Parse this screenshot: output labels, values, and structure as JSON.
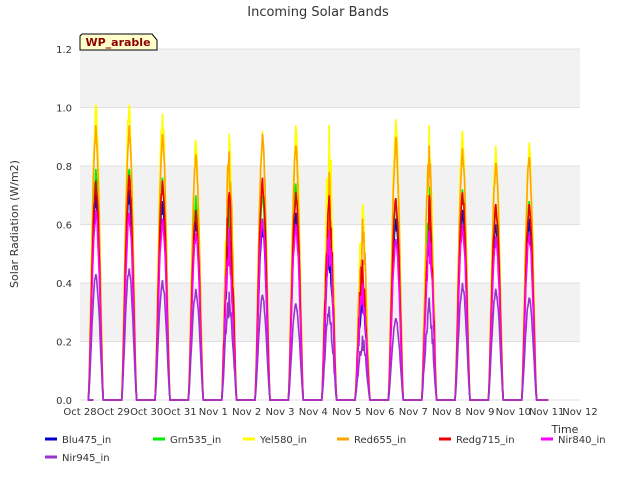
{
  "chart_data": {
    "type": "line",
    "title": "Incoming Solar Bands",
    "ylabel": "Solar Radiation (W/m2)",
    "xlabel": "Time",
    "ylim": [
      0.0,
      1.2
    ],
    "yticks": [
      "0.0",
      "0.2",
      "0.4",
      "0.6",
      "0.8",
      "1.0",
      "1.2"
    ],
    "xticks": [
      "Oct 28",
      "Oct 29",
      "Oct 30",
      "Oct 31",
      "Nov 1",
      "Nov 2",
      "Nov 3",
      "Nov 4",
      "Nov 5",
      "Nov 6",
      "Nov 7",
      "Nov 8",
      "Nov 9",
      "Nov 10",
      "Nov 11",
      "Nov 12"
    ],
    "xrange_days": [
      0,
      15
    ],
    "annotation": "WP_arable",
    "grid": "horizontal bands",
    "legend_position": "bottom",
    "series": [
      {
        "name": "Blu475_in",
        "color": "#0000cc",
        "peaks": [
          0.71,
          0.72,
          0.68,
          0.61,
          0.6,
          0.6,
          0.64,
          0.55,
          0.38,
          0.62,
          0.66,
          0.65,
          0.6,
          0.62
        ]
      },
      {
        "name": "Grn535_in",
        "color": "#00ee00",
        "peaks": [
          0.79,
          0.79,
          0.76,
          0.7,
          0.7,
          0.7,
          0.74,
          0.64,
          0.45,
          0.69,
          0.73,
          0.72,
          0.66,
          0.68
        ]
      },
      {
        "name": "Yel580_in",
        "color": "#ffff00",
        "peaks": [
          1.01,
          1.01,
          0.98,
          0.89,
          0.91,
          0.92,
          0.94,
          0.94,
          0.67,
          0.96,
          0.94,
          0.92,
          0.87,
          0.88
        ]
      },
      {
        "name": "Red655_in",
        "color": "#ffa500",
        "peaks": [
          0.94,
          0.94,
          0.91,
          0.84,
          0.85,
          0.91,
          0.87,
          0.78,
          0.62,
          0.9,
          0.87,
          0.86,
          0.81,
          0.83
        ]
      },
      {
        "name": "Redg715_in",
        "color": "#ee0000",
        "peaks": [
          0.75,
          0.77,
          0.75,
          0.65,
          0.71,
          0.76,
          0.71,
          0.7,
          0.48,
          0.69,
          0.7,
          0.71,
          0.67,
          0.67
        ]
      },
      {
        "name": "Nir840_in",
        "color": "#ff00ff",
        "peaks": [
          0.65,
          0.64,
          0.62,
          0.57,
          0.59,
          0.62,
          0.6,
          0.58,
          0.4,
          0.55,
          0.58,
          0.6,
          0.56,
          0.57
        ]
      },
      {
        "name": "Nir945_in",
        "color": "#9933cc",
        "peaks": [
          0.43,
          0.45,
          0.41,
          0.38,
          0.37,
          0.36,
          0.33,
          0.32,
          0.22,
          0.28,
          0.35,
          0.4,
          0.38,
          0.35
        ]
      }
    ],
    "day_offsets": [
      0.5,
      1.5,
      2.5,
      3.5,
      4.5,
      5.5,
      6.5,
      7.5,
      8.5,
      9.5,
      10.5,
      11.5,
      12.5,
      13.5
    ]
  }
}
